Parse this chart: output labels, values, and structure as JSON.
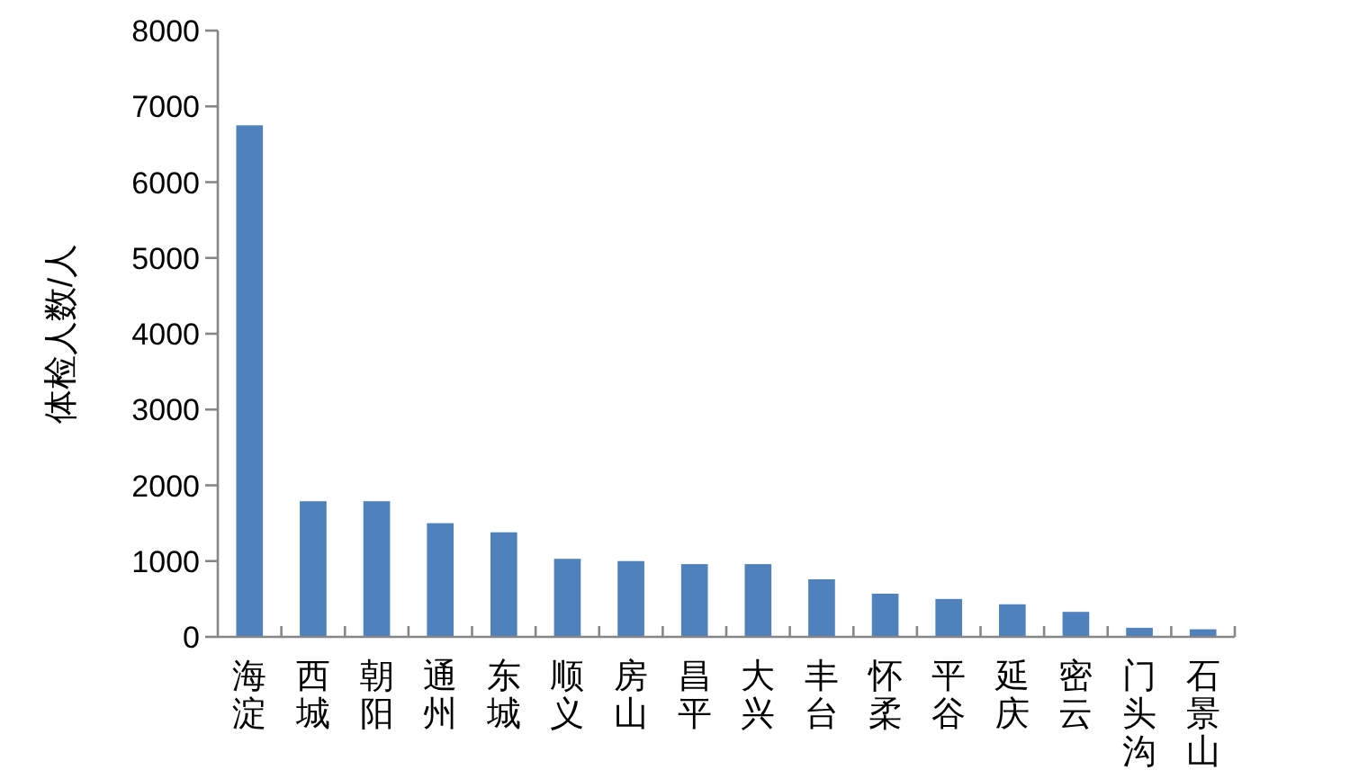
{
  "chart_data": {
    "type": "bar",
    "ylabel": "体检人数/人",
    "categories": [
      "海淀",
      "西城",
      "朝阳",
      "通州",
      "东城",
      "顺义",
      "房山",
      "昌平",
      "大兴",
      "丰台",
      "怀柔",
      "平谷",
      "延庆",
      "密云",
      "门头沟",
      "石景山"
    ],
    "values": [
      6750,
      1790,
      1790,
      1500,
      1380,
      1030,
      1000,
      960,
      960,
      760,
      570,
      500,
      430,
      330,
      120,
      100
    ],
    "color": "#4f81bd",
    "ylim": [
      0,
      8000
    ],
    "yticks": [
      0,
      1000,
      2000,
      3000,
      4000,
      5000,
      6000,
      7000,
      8000
    ],
    "grid": false
  }
}
